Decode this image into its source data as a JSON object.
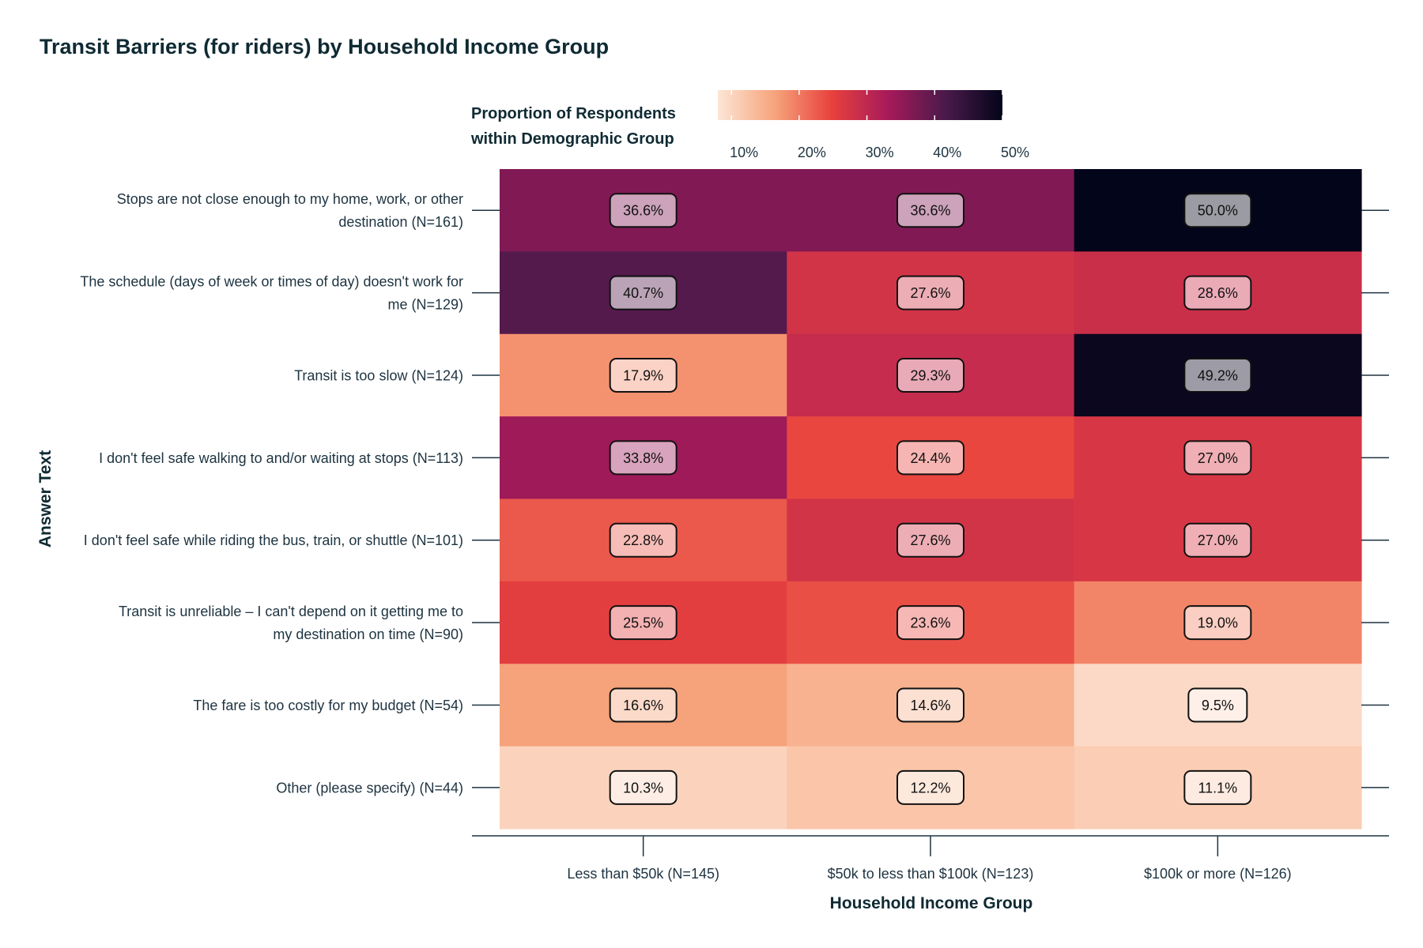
{
  "title": "Transit Barriers (for riders) by Household Income Group",
  "legend": {
    "title_lines": [
      "Proportion of Respondents",
      "within Demographic Group"
    ],
    "ticks": [
      "10%",
      "20%",
      "30%",
      "40%",
      "50%"
    ],
    "tick_values": [
      10,
      20,
      30,
      40,
      50
    ],
    "range": [
      8,
      50
    ],
    "colors": [
      "#fde5d6",
      "#f6a47b",
      "#e8413d",
      "#a61a5a",
      "#4a1a4a",
      "#03051a"
    ]
  },
  "chart_data": {
    "type": "heatmap",
    "title": "Transit Barriers (for riders) by Household Income Group",
    "xlabel": "Household Income Group",
    "ylabel": "Answer Text",
    "x_categories": [
      "Less than $50k (N=145)",
      "$50k to less than $100k (N=123)",
      "$100k or more (N=126)"
    ],
    "y_categories": [
      [
        "Stops are not close enough to my home, work, or other",
        "destination (N=161)"
      ],
      [
        "The schedule (days of week or times of day) doesn't work for",
        "me (N=129)"
      ],
      [
        "Transit is too slow (N=124)"
      ],
      [
        "I don't feel safe walking to and/or waiting at stops (N=113)"
      ],
      [
        "I don't feel safe while riding the bus, train, or shuttle (N=101)"
      ],
      [
        "Transit is unreliable – I can't depend on it getting me to",
        "my destination on time (N=90)"
      ],
      [
        "The fare is too costly for my budget (N=54)"
      ],
      [
        "Other (please specify) (N=44)"
      ]
    ],
    "values": [
      [
        36.6,
        36.6,
        50.0
      ],
      [
        40.7,
        27.6,
        28.6
      ],
      [
        17.9,
        29.3,
        49.2
      ],
      [
        33.8,
        24.4,
        27.0
      ],
      [
        22.8,
        27.6,
        27.0
      ],
      [
        25.5,
        23.6,
        19.0
      ],
      [
        16.6,
        14.6,
        9.5
      ],
      [
        10.3,
        12.2,
        11.1
      ]
    ],
    "value_suffix": "%",
    "color_scale": "rocket (reversed)",
    "legend_placement": "top"
  }
}
